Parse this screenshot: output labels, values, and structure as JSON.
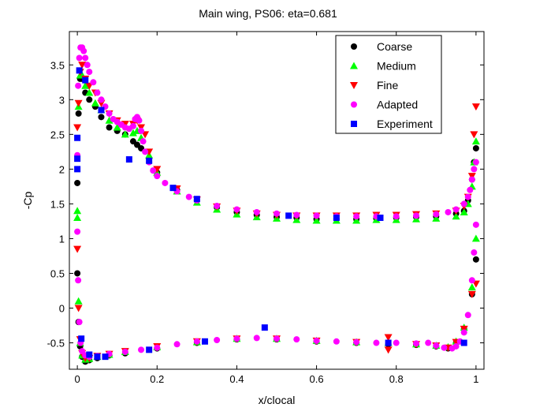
{
  "chart_data": {
    "type": "scatter",
    "title": "Main wing, PS06: eta=0.681",
    "xlabel": "x/clocal",
    "ylabel": "-Cp",
    "xlim": [
      -0.02,
      1.02
    ],
    "ylim": [
      -0.88,
      3.98
    ],
    "xticks": [
      0,
      0.2,
      0.4,
      0.6,
      0.8,
      1
    ],
    "xtick_labels": [
      "0",
      "0.2",
      "0.4",
      "0.6",
      "0.8",
      "1"
    ],
    "yticks": [
      -0.5,
      0,
      0.5,
      1,
      1.5,
      2,
      2.5,
      3,
      3.5
    ],
    "ytick_labels": [
      "-0.5",
      "0",
      "0.5",
      "1",
      "1.5",
      "2",
      "2.5",
      "3",
      "3.5"
    ],
    "grid": false,
    "legend_position": "top-right",
    "series": [
      {
        "name": "Coarse",
        "marker": "circle",
        "color": "#000000",
        "upper_x": [
          0,
          0.003,
          0.007,
          0.012,
          0.02,
          0.03,
          0.045,
          0.06,
          0.08,
          0.1,
          0.12,
          0.14,
          0.15,
          0.16,
          0.18,
          0.2,
          0.25,
          0.3,
          0.35,
          0.4,
          0.45,
          0.5,
          0.55,
          0.6,
          0.65,
          0.7,
          0.75,
          0.8,
          0.85,
          0.9,
          0.95,
          0.97,
          0.98,
          0.99,
          0.995,
          1.0
        ],
        "upper_y": [
          1.8,
          2.8,
          3.3,
          3.3,
          3.1,
          3.0,
          2.9,
          2.75,
          2.6,
          2.55,
          2.5,
          2.4,
          2.35,
          2.3,
          2.15,
          1.95,
          1.7,
          1.55,
          1.45,
          1.38,
          1.34,
          1.31,
          1.3,
          1.28,
          1.28,
          1.28,
          1.29,
          1.3,
          1.31,
          1.32,
          1.36,
          1.4,
          1.55,
          1.85,
          2.1,
          2.3
        ],
        "lower_x": [
          0,
          0.003,
          0.007,
          0.012,
          0.02,
          0.03,
          0.05,
          0.08,
          0.12,
          0.2,
          0.3,
          0.4,
          0.5,
          0.6,
          0.7,
          0.78,
          0.85,
          0.9,
          0.93,
          0.95,
          0.97,
          0.99,
          1.0
        ],
        "lower_y": [
          0.5,
          -0.2,
          -0.55,
          -0.7,
          -0.77,
          -0.75,
          -0.72,
          -0.68,
          -0.65,
          -0.58,
          -0.5,
          -0.45,
          -0.45,
          -0.48,
          -0.5,
          -0.52,
          -0.53,
          -0.55,
          -0.58,
          -0.5,
          -0.3,
          0.2,
          0.7
        ]
      },
      {
        "name": "Medium",
        "marker": "triangle-up",
        "color": "#00ff00",
        "upper_x": [
          0,
          0.003,
          0.007,
          0.012,
          0.02,
          0.03,
          0.045,
          0.06,
          0.08,
          0.1,
          0.12,
          0.14,
          0.15,
          0.16,
          0.18,
          0.2,
          0.25,
          0.3,
          0.35,
          0.4,
          0.45,
          0.5,
          0.55,
          0.6,
          0.65,
          0.7,
          0.75,
          0.8,
          0.85,
          0.9,
          0.95,
          0.97,
          0.98,
          0.99,
          0.995,
          1.0
        ],
        "upper_y": [
          1.4,
          2.9,
          3.35,
          3.35,
          3.2,
          3.1,
          2.95,
          2.85,
          2.7,
          2.6,
          2.5,
          2.52,
          2.55,
          2.45,
          2.2,
          1.95,
          1.68,
          1.52,
          1.42,
          1.35,
          1.31,
          1.29,
          1.27,
          1.26,
          1.26,
          1.26,
          1.27,
          1.27,
          1.28,
          1.29,
          1.32,
          1.38,
          1.5,
          1.75,
          2.1,
          2.4
        ],
        "lower_x": [
          0,
          0.003,
          0.007,
          0.012,
          0.02,
          0.03,
          0.05,
          0.08,
          0.12,
          0.2,
          0.3,
          0.4,
          0.5,
          0.6,
          0.7,
          0.78,
          0.85,
          0.9,
          0.93,
          0.95,
          0.97,
          0.99,
          1.0
        ],
        "lower_y": [
          1.3,
          0.1,
          -0.5,
          -0.68,
          -0.74,
          -0.73,
          -0.7,
          -0.67,
          -0.63,
          -0.56,
          -0.49,
          -0.44,
          -0.44,
          -0.47,
          -0.49,
          -0.5,
          -0.52,
          -0.54,
          -0.56,
          -0.48,
          -0.28,
          0.3,
          1.0
        ]
      },
      {
        "name": "Fine",
        "marker": "triangle-down",
        "color": "#ff0000",
        "upper_x": [
          0,
          0.003,
          0.007,
          0.012,
          0.02,
          0.03,
          0.045,
          0.06,
          0.08,
          0.1,
          0.12,
          0.14,
          0.15,
          0.16,
          0.17,
          0.18,
          0.2,
          0.25,
          0.3,
          0.35,
          0.4,
          0.45,
          0.5,
          0.55,
          0.6,
          0.65,
          0.7,
          0.75,
          0.8,
          0.85,
          0.9,
          0.95,
          0.97,
          0.98,
          0.99,
          0.995,
          1.0
        ],
        "upper_y": [
          2.6,
          2.95,
          3.4,
          3.5,
          3.3,
          3.2,
          3.1,
          2.95,
          2.8,
          2.7,
          2.65,
          2.65,
          2.7,
          2.6,
          2.5,
          2.25,
          2.0,
          1.72,
          1.56,
          1.46,
          1.4,
          1.36,
          1.34,
          1.33,
          1.33,
          1.33,
          1.33,
          1.34,
          1.34,
          1.35,
          1.36,
          1.4,
          1.47,
          1.6,
          1.9,
          2.5,
          2.9
        ],
        "lower_x": [
          0,
          0.003,
          0.007,
          0.012,
          0.02,
          0.03,
          0.05,
          0.08,
          0.12,
          0.2,
          0.3,
          0.4,
          0.5,
          0.6,
          0.7,
          0.78,
          0.78,
          0.85,
          0.9,
          0.93,
          0.95,
          0.97,
          0.99,
          1.0
        ],
        "lower_y": [
          0.85,
          0.0,
          -0.45,
          -0.65,
          -0.72,
          -0.72,
          -0.69,
          -0.66,
          -0.62,
          -0.55,
          -0.48,
          -0.44,
          -0.44,
          -0.47,
          -0.49,
          -0.42,
          -0.6,
          -0.52,
          -0.54,
          -0.57,
          -0.49,
          -0.3,
          0.2,
          0.35
        ]
      },
      {
        "name": "Adapted",
        "marker": "circle",
        "color": "#ff00ff",
        "upper_x": [
          0,
          0.002,
          0.005,
          0.008,
          0.012,
          0.016,
          0.02,
          0.025,
          0.03,
          0.04,
          0.05,
          0.06,
          0.07,
          0.08,
          0.09,
          0.1,
          0.11,
          0.12,
          0.13,
          0.14,
          0.145,
          0.15,
          0.155,
          0.16,
          0.165,
          0.17,
          0.18,
          0.19,
          0.2,
          0.22,
          0.25,
          0.28,
          0.3,
          0.35,
          0.4,
          0.45,
          0.5,
          0.55,
          0.6,
          0.65,
          0.7,
          0.75,
          0.8,
          0.85,
          0.9,
          0.93,
          0.95,
          0.97,
          0.98,
          0.985,
          0.99,
          0.995,
          1.0
        ],
        "upper_y": [
          2.2,
          3.2,
          3.6,
          3.75,
          3.75,
          3.7,
          3.6,
          3.5,
          3.4,
          3.25,
          3.1,
          3.0,
          2.9,
          2.8,
          2.72,
          2.68,
          2.64,
          2.6,
          2.58,
          2.62,
          2.72,
          2.75,
          2.7,
          2.55,
          2.4,
          2.25,
          2.1,
          1.98,
          1.9,
          1.8,
          1.68,
          1.6,
          1.55,
          1.47,
          1.42,
          1.38,
          1.36,
          1.34,
          1.33,
          1.32,
          1.32,
          1.32,
          1.32,
          1.33,
          1.35,
          1.38,
          1.42,
          1.5,
          1.6,
          1.7,
          1.85,
          2.0,
          2.1
        ],
        "lower_x": [
          0,
          0.002,
          0.005,
          0.008,
          0.012,
          0.02,
          0.03,
          0.05,
          0.08,
          0.12,
          0.16,
          0.2,
          0.25,
          0.3,
          0.35,
          0.4,
          0.45,
          0.5,
          0.55,
          0.6,
          0.65,
          0.7,
          0.75,
          0.8,
          0.85,
          0.88,
          0.9,
          0.92,
          0.94,
          0.95,
          0.96,
          0.97,
          0.98,
          0.99,
          0.995,
          1.0
        ],
        "lower_y": [
          1.1,
          0.4,
          -0.2,
          -0.5,
          -0.62,
          -0.68,
          -0.7,
          -0.69,
          -0.66,
          -0.63,
          -0.6,
          -0.57,
          -0.52,
          -0.48,
          -0.46,
          -0.44,
          -0.43,
          -0.44,
          -0.45,
          -0.47,
          -0.48,
          -0.49,
          -0.5,
          -0.5,
          -0.51,
          -0.5,
          -0.54,
          -0.57,
          -0.58,
          -0.55,
          -0.48,
          -0.35,
          -0.1,
          0.4,
          0.8,
          1.2
        ]
      },
      {
        "name": "Experiment",
        "marker": "square",
        "color": "#0000ff",
        "upper_x": [
          0.0,
          0.0,
          0.0,
          0.005,
          0.02,
          0.06,
          0.13,
          0.18,
          0.24,
          0.3,
          0.53,
          0.65,
          0.76
        ],
        "upper_y": [
          2.45,
          2.15,
          2.0,
          3.42,
          3.28,
          2.85,
          2.14,
          2.12,
          1.73,
          1.57,
          1.33,
          1.3,
          1.3
        ],
        "lower_x": [
          0.01,
          0.03,
          0.05,
          0.07,
          0.18,
          0.32,
          0.47,
          0.78,
          0.97
        ],
        "lower_y": [
          -0.44,
          -0.67,
          -0.7,
          -0.7,
          -0.6,
          -0.48,
          -0.28,
          -0.5,
          -0.5
        ]
      }
    ]
  }
}
